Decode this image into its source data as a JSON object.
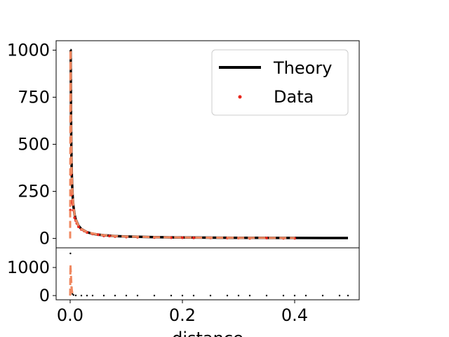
{
  "chart_data": [
    {
      "type": "line",
      "panel": "main",
      "xlim": [
        -0.025,
        0.515
      ],
      "ylim": [
        -50,
        1050
      ],
      "yticks": [
        0,
        250,
        500,
        750,
        1000
      ],
      "ytick_labels": [
        "0",
        "250",
        "500",
        "750",
        "1000"
      ],
      "grid": false,
      "legend_position": "top-right",
      "legend": [
        {
          "label": "Theory",
          "marker": "line"
        },
        {
          "label": "Data",
          "marker": "dot"
        }
      ],
      "series": [
        {
          "name": "Theory",
          "kind": "line",
          "color": "#000000",
          "x": [
            0.0005,
            0.001,
            0.0015,
            0.002,
            0.0025,
            0.003,
            0.004,
            0.005,
            0.006,
            0.008,
            0.01,
            0.015,
            0.02,
            0.03,
            0.04,
            0.05,
            0.06,
            0.08,
            0.1,
            0.15,
            0.2,
            0.25,
            0.3,
            0.35,
            0.4,
            0.45,
            0.495
          ],
          "y": [
            1000,
            1000,
            667,
            500,
            400,
            333,
            250,
            200,
            167,
            125,
            100,
            67,
            50,
            33,
            25,
            20,
            17,
            12.5,
            10,
            6.7,
            5,
            4,
            3.3,
            2.9,
            2.5,
            2.2,
            2
          ]
        },
        {
          "name": "Data",
          "kind": "scatter",
          "color": "#e8261c",
          "x": [
            0.0005,
            0.001,
            0.0015,
            0.002,
            0.003,
            0.004,
            0.005,
            0.006,
            0.008,
            0.01,
            0.012,
            0.015,
            0.02,
            0.025,
            0.03,
            0.04,
            0.05,
            0.06,
            0.07,
            0.08,
            0.1,
            0.12,
            0.15,
            0.18,
            0.2,
            0.22,
            0.25,
            0.28,
            0.3,
            0.32,
            0.35,
            0.38,
            0.4
          ],
          "y": [
            150,
            340,
            240,
            230,
            190,
            200,
            180,
            150,
            110,
            95,
            80,
            62,
            48,
            40,
            32,
            24,
            20,
            14,
            13,
            10,
            8,
            7,
            5,
            4,
            4,
            3,
            3,
            2,
            2,
            1,
            2,
            1,
            1
          ]
        },
        {
          "name": "",
          "kind": "dashed-line",
          "color": "#f08860",
          "x": [
            0.0,
            0.0005,
            0.001,
            0.0015,
            0.002,
            0.0025,
            0.003,
            0.004,
            0.006,
            0.008,
            0.01,
            0.015,
            0.02,
            0.03,
            0.05,
            0.08,
            0.1,
            0.15,
            0.2,
            0.25,
            0.3,
            0.35,
            0.4
          ],
          "y": [
            0,
            1000,
            1000,
            667,
            500,
            400,
            333,
            250,
            167,
            125,
            100,
            67,
            50,
            33,
            20,
            12.5,
            10,
            6.7,
            5,
            4,
            3.3,
            2.9,
            2.5
          ]
        }
      ]
    },
    {
      "type": "line",
      "panel": "residual",
      "xlabel": "distance",
      "xlim": [
        -0.025,
        0.515
      ],
      "ylim": [
        -150,
        1700
      ],
      "yticks": [
        0,
        1000
      ],
      "ytick_labels": [
        "0",
        "1000"
      ],
      "xticks": [
        0.0,
        0.2,
        0.4
      ],
      "xtick_labels": [
        "0.0",
        "0.2",
        "0.4"
      ],
      "grid": false,
      "series": [
        {
          "name": "",
          "kind": "scatter",
          "color": "#000000",
          "x": [
            0.0005,
            0.001,
            0.0015,
            0.002,
            0.003,
            0.004,
            0.006,
            0.01,
            0.02,
            0.03,
            0.04,
            0.06,
            0.08,
            0.1,
            0.12,
            0.15,
            0.18,
            0.2,
            0.22,
            0.25,
            0.28,
            0.3,
            0.32,
            0.35,
            0.38,
            0.4,
            0.42,
            0.45,
            0.48,
            0.495
          ],
          "y": [
            1500,
            900,
            600,
            300,
            120,
            60,
            20,
            5,
            0,
            0,
            0,
            0,
            0,
            0,
            0,
            0,
            0,
            0,
            0,
            0,
            0,
            0,
            0,
            0,
            0,
            0,
            0,
            0,
            0,
            0
          ]
        },
        {
          "name": "",
          "kind": "dashed-line",
          "color": "#f08860",
          "x": [
            0.0,
            0.0005,
            0.001,
            0.002,
            0.003,
            0.004,
            0.006
          ],
          "y": [
            0,
            1100,
            900,
            500,
            200,
            60,
            0
          ]
        }
      ]
    }
  ]
}
